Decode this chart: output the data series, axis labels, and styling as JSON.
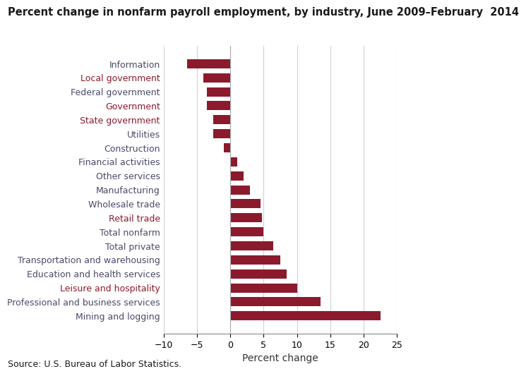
{
  "title": "Percent change in nonfarm payroll employment, by industry, June 2009–February  2014",
  "categories": [
    "Mining and logging",
    "Professional and business services",
    "Leisure and hospitality",
    "Education and health services",
    "Transportation and warehousing",
    "Total private",
    "Total nonfarm",
    "Retail trade",
    "Wholesale trade",
    "Manufacturing",
    "Other services",
    "Financial activities",
    "Construction",
    "Utilities",
    "State government",
    "Government",
    "Federal government",
    "Local government",
    "Information"
  ],
  "values": [
    22.5,
    13.5,
    10.0,
    8.5,
    7.5,
    6.5,
    5.0,
    4.8,
    4.5,
    3.0,
    2.0,
    1.0,
    -1.0,
    -2.5,
    -2.5,
    -3.5,
    -3.5,
    -4.0,
    -6.5
  ],
  "label_colors": [
    "#4a4a6a",
    "#8B1A2D",
    "#4a4a6a",
    "#8B1A2D",
    "#8B1A2D",
    "#4a4a6a",
    "#4a4a6a",
    "#4a4a6a",
    "#4a4a6a",
    "#4a4a6a",
    "#4a4a6a",
    "#8B1A2D",
    "#4a4a6a",
    "#4a4a6a",
    "#4a4a6a",
    "#4a4a6a",
    "#8B1A2D",
    "#4a4a6a",
    "#4a4a6a"
  ],
  "bar_color": "#8B1A2D",
  "xlabel": "Percent change",
  "source": "Source: U.S. Bureau of Labor Statistics.",
  "xlim": [
    -10,
    25
  ],
  "xticks": [
    -10,
    -5,
    0,
    5,
    10,
    15,
    20,
    25
  ],
  "title_fontsize": 10.5,
  "label_fontsize": 9,
  "tick_fontsize": 9,
  "source_fontsize": 9,
  "xlabel_fontsize": 10
}
